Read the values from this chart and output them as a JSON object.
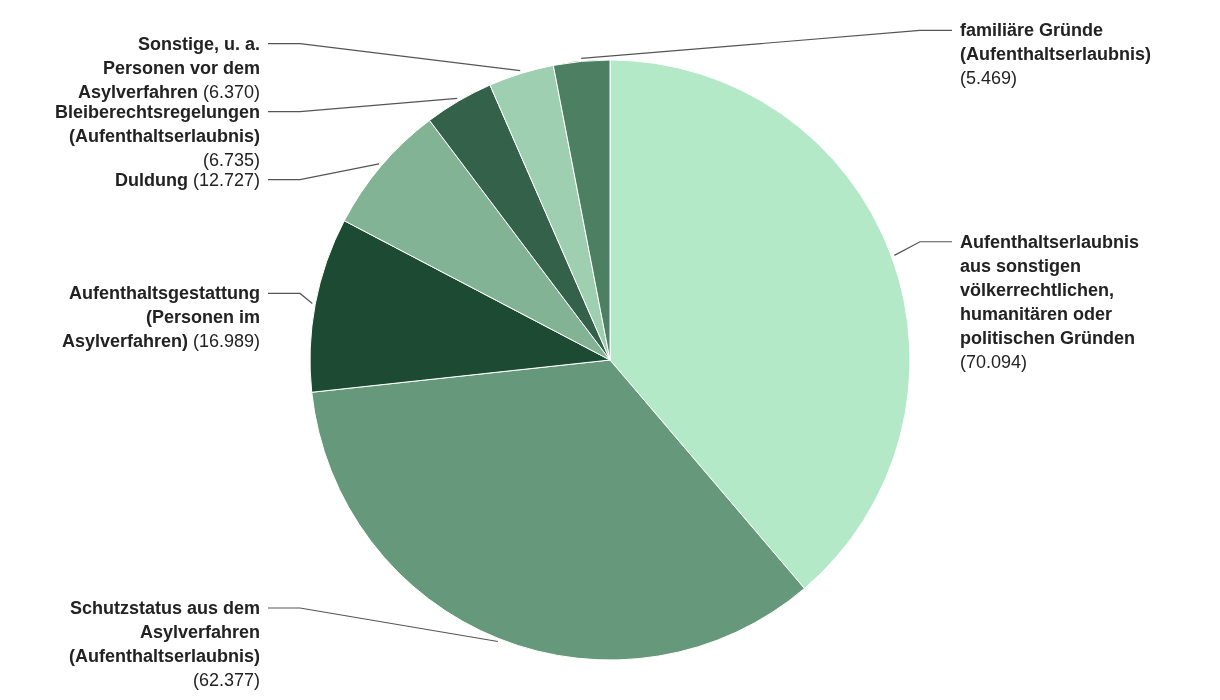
{
  "chart_data": {
    "type": "pie",
    "categories": [
      "Aufenthaltserlaubnis aus sonstigen völkerrechtlichen, humanitären oder politischen Gründen",
      "Schutzstatus aus dem Asylverfahren (Aufenthaltserlaubnis)",
      "Aufenthaltsgestattung (Personen im Asylverfahren)",
      "Duldung",
      "Bleiberechtsregelungen (Aufenthaltserlaubnis)",
      "Sonstige, u. a. Personen vor dem Asylverfahren",
      "familiäre Gründe (Aufenthaltserlaubnis)"
    ],
    "values": [
      70094,
      62377,
      16989,
      12727,
      6735,
      6370,
      5469
    ],
    "colors": [
      "#b3e9c7",
      "#66997b",
      "#1c4a33",
      "#82b394",
      "#336149",
      "#9dcfb0",
      "#4d7f62"
    ],
    "value_labels": [
      "(70.094)",
      "(62.377)",
      "(16.989)",
      "(12.727)",
      "(6.735)",
      "(6.370)",
      "(5.469)"
    ]
  }
}
